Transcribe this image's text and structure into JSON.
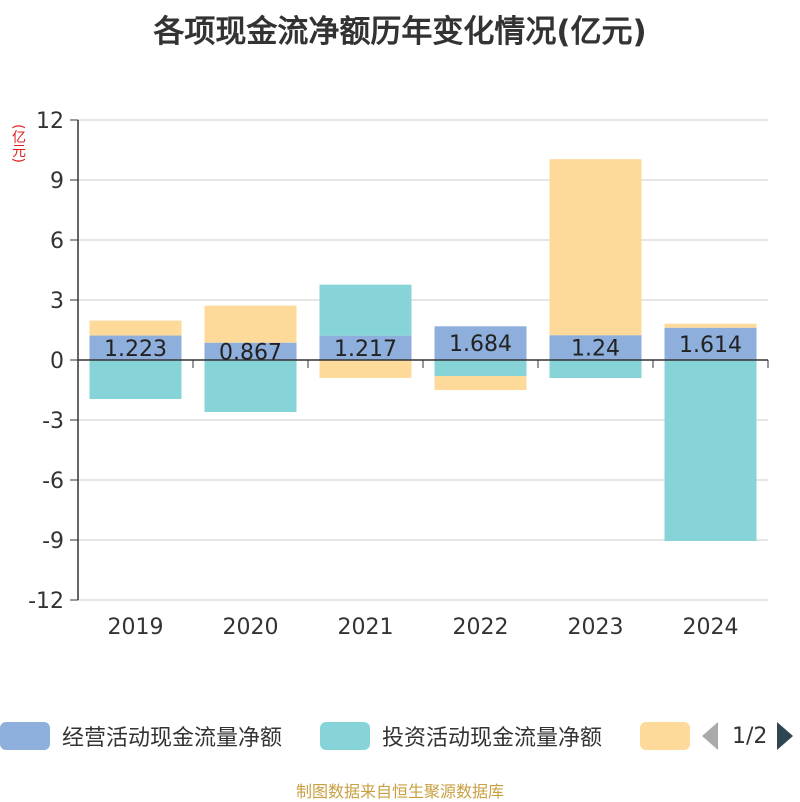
{
  "title": "各项现金流净额历年变化情况(亿元)",
  "unit_label": "(亿元)",
  "source_text": "制图数据来自恒生聚源数据库",
  "legend": {
    "items": [
      {
        "label": "经营活动现金流量净额",
        "color": "#8eaedc"
      },
      {
        "label": "投资活动现金流量净额",
        "color": "#86d4d8"
      },
      {
        "label": "",
        "color": "#fdd99a"
      }
    ],
    "page_text": "1/2"
  },
  "chart_data": {
    "type": "bar",
    "stacked": true,
    "categories": [
      "2019",
      "2020",
      "2021",
      "2022",
      "2023",
      "2024"
    ],
    "series": [
      {
        "name": "经营活动现金流量净额",
        "color": "#8eaedc",
        "values": [
          1.223,
          0.867,
          1.217,
          1.684,
          1.24,
          1.614
        ]
      },
      {
        "name": "投资活动现金流量净额",
        "color": "#86d4d8",
        "values": [
          -1.95,
          -2.6,
          2.55,
          -0.8,
          -0.9,
          -9.05
        ]
      },
      {
        "name": "",
        "color": "#fdd99a",
        "values": [
          0.75,
          1.85,
          -0.9,
          -0.7,
          8.8,
          0.2
        ]
      }
    ],
    "data_labels": [
      "1.223",
      "0.867",
      "1.217",
      "1.684",
      "1.24",
      "1.614"
    ],
    "yticks": [
      "12",
      "9",
      "6",
      "3",
      "0",
      "-3",
      "-6",
      "-9",
      "-12"
    ],
    "ylim": [
      -12,
      12
    ],
    "xlabel": "",
    "ylabel": "(亿元)"
  }
}
